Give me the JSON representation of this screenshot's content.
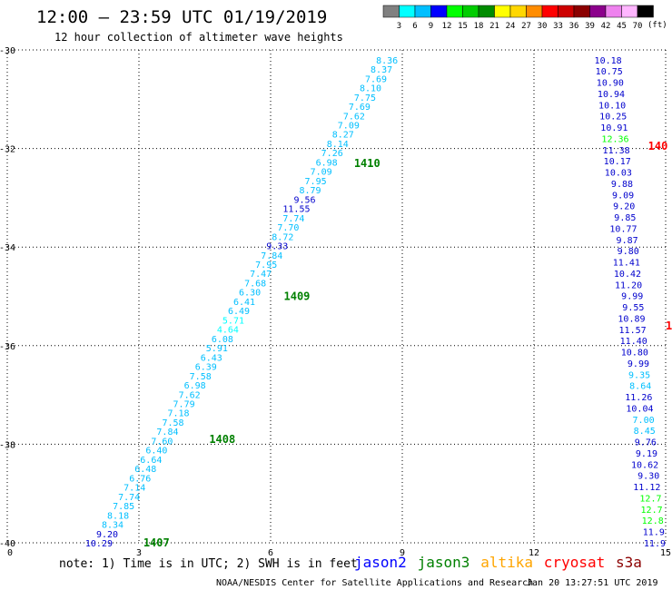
{
  "header": {
    "title": "12:00 — 23:59 UTC 01/19/2019",
    "subtitle": "12 hour collection of altimeter wave heights"
  },
  "colorbar": {
    "labels": [
      "3",
      "6",
      "9",
      "12",
      "15",
      "18",
      "21",
      "24",
      "27",
      "30",
      "33",
      "36",
      "39",
      "42",
      "45",
      "70"
    ],
    "unit": "(ft)",
    "colors": [
      "#808080",
      "#00ffff",
      "#00bfff",
      "#0000ff",
      "#00ff00",
      "#00cd00",
      "#008b00",
      "#ffff00",
      "#ffd700",
      "#ff8c00",
      "#ff0000",
      "#cd0000",
      "#8b0000",
      "#8b008b",
      "#ee82ee",
      "#ffb6ff",
      "#000000"
    ]
  },
  "footer": {
    "note": "note: 1) Time is in UTC; 2) SWH is in feet",
    "credit": "NOAA/NESDIS Center for Satellite Applications and Research",
    "timestamp": "Jan 20 13:27:51 UTC 2019",
    "satellites": [
      {
        "name": "jason2",
        "color": "#0000ff"
      },
      {
        "name": "jason3",
        "color": "#008000"
      },
      {
        "name": "altika",
        "color": "#ffa500"
      },
      {
        "name": "cryosat",
        "color": "#ff0000"
      },
      {
        "name": "s3a",
        "color": "#8b0000"
      }
    ]
  },
  "chart_data": {
    "type": "scatter",
    "xlim": [
      0,
      15
    ],
    "ylim": [
      -40,
      -30
    ],
    "xticks": [
      0,
      3,
      6,
      9,
      12,
      15
    ],
    "xtick_labels": [
      "0",
      "3",
      "6",
      "9",
      "12",
      "15"
    ],
    "yticks": [
      -30,
      -32,
      -34,
      -36,
      -38,
      -40
    ],
    "ytick_labels": [
      "-30",
      "-32",
      "-34",
      "-36",
      "-38",
      "-40"
    ],
    "grid": true,
    "track_west": {
      "x_start": 2.4,
      "y_start": -40.0,
      "x_end": 8.9,
      "y_end": -30.2,
      "labels": [
        "10.29",
        "9.20",
        "8.34",
        "8.18",
        "7.85",
        "7.74",
        "7.14",
        "6.76",
        "6.48",
        "6.64",
        "6.40",
        "7.60",
        "7.84",
        "7.58",
        "7.18",
        "7.79",
        "7.62",
        "6.98",
        "7.58",
        "6.39",
        "6.43",
        "5.91",
        "6.08",
        "4.64",
        "5.71",
        "6.49",
        "6.41",
        "6.30",
        "7.68",
        "7.47",
        "7.95",
        "7.84",
        "9.33",
        "8.72",
        "7.70",
        "7.74",
        "11.55",
        "9.56",
        "8.79",
        "7.95",
        "7.09",
        "6.98",
        "7.26",
        "8.14",
        "8.27",
        "7.09",
        "7.62",
        "7.69",
        "7.75",
        "8.10",
        "7.69",
        "8.37",
        "8.36"
      ],
      "colors": [
        "#0000cd",
        "#0000cd",
        "#00bfff",
        "#00bfff",
        "#00bfff",
        "#00bfff",
        "#00bfff",
        "#00bfff",
        "#00bfff",
        "#00bfff",
        "#00bfff",
        "#00bfff",
        "#00bfff",
        "#00bfff",
        "#00bfff",
        "#00bfff",
        "#00bfff",
        "#00bfff",
        "#00bfff",
        "#00bfff",
        "#00bfff",
        "#00bfff",
        "#00bfff",
        "#00ffff",
        "#00ffff",
        "#00bfff",
        "#00bfff",
        "#00bfff",
        "#00bfff",
        "#00bfff",
        "#00bfff",
        "#00bfff",
        "#0000cd",
        "#00bfff",
        "#00bfff",
        "#00bfff",
        "#0000cd",
        "#0000cd",
        "#00bfff",
        "#00bfff",
        "#00bfff",
        "#00bfff",
        "#00bfff",
        "#00bfff",
        "#00bfff",
        "#00bfff",
        "#00bfff",
        "#00bfff",
        "#00bfff",
        "#00bfff",
        "#00bfff",
        "#00bfff",
        "#00bfff"
      ]
    },
    "track_east": {
      "x_start": 15.0,
      "y_start": -40.0,
      "x_end": 14.0,
      "y_end": -30.2,
      "labels": [
        "11.9",
        "11.9",
        "12.8",
        "12.7",
        "12.7",
        "11.12",
        "9.30",
        "10.62",
        "9.19",
        "9.76",
        "8.45",
        "7.00",
        "10.04",
        "11.26",
        "8.64",
        "9.35",
        "9.99",
        "10.80",
        "11.40",
        "11.57",
        "10.89",
        "9.55",
        "9.99",
        "11.20",
        "10.42",
        "11.41",
        "9.80",
        "9.87",
        "10.77",
        "9.85",
        "9.20",
        "9.09",
        "9.88",
        "10.03",
        "10.17",
        "11.38",
        "12.36",
        "10.91",
        "10.25",
        "10.10",
        "10.94",
        "10.90",
        "10.75",
        "10.18"
      ],
      "colors": [
        "#0000cd",
        "#0000cd",
        "#00ff00",
        "#00ff00",
        "#00ff00",
        "#0000cd",
        "#0000cd",
        "#0000cd",
        "#0000cd",
        "#0000cd",
        "#00bfff",
        "#00bfff",
        "#0000cd",
        "#0000cd",
        "#00bfff",
        "#00bfff",
        "#0000cd",
        "#0000cd",
        "#0000cd",
        "#0000cd",
        "#0000cd",
        "#0000cd",
        "#0000cd",
        "#0000cd",
        "#0000cd",
        "#0000cd",
        "#0000cd",
        "#0000cd",
        "#0000cd",
        "#0000cd",
        "#0000cd",
        "#0000cd",
        "#0000cd",
        "#0000cd",
        "#0000cd",
        "#0000cd",
        "#00ff00",
        "#0000cd",
        "#0000cd",
        "#0000cd",
        "#0000cd",
        "#0000cd",
        "#0000cd",
        "#0000cd"
      ]
    },
    "pass_labels": [
      {
        "text": "1407",
        "x": 3.1,
        "y": -40.0,
        "color": "#008000"
      },
      {
        "text": "1408",
        "x": 4.6,
        "y": -37.9,
        "color": "#008000"
      },
      {
        "text": "1409",
        "x": 6.3,
        "y": -35.0,
        "color": "#008000"
      },
      {
        "text": "1410",
        "x": 7.9,
        "y": -32.3,
        "color": "#008000"
      },
      {
        "text": "140",
        "x": 14.6,
        "y": -31.95,
        "color": "#ff0000"
      },
      {
        "text": "1",
        "x": 15.0,
        "y": -35.6,
        "color": "#ff0000"
      }
    ]
  }
}
